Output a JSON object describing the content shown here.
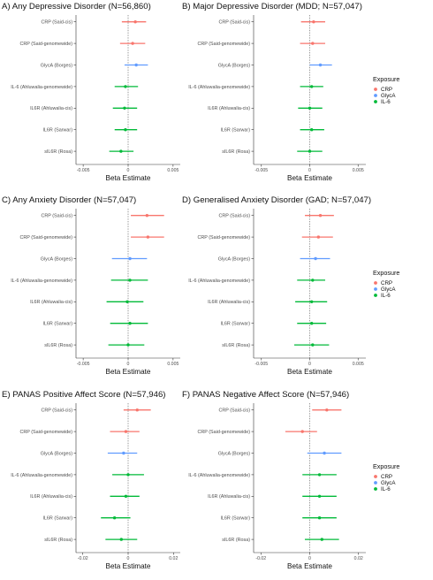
{
  "figure": {
    "legend": {
      "title": "Exposure",
      "items": [
        {
          "label": "CRP",
          "color": "#F8766D"
        },
        {
          "label": "GlycA",
          "color": "#619CFF"
        },
        {
          "label": "IL-6",
          "color": "#00BA38"
        }
      ]
    }
  },
  "chart_data": [
    {
      "type": "scatter",
      "title": "A) Any Depressive Disorder (N=56,860)",
      "xlabel": "Beta Estimate",
      "xlim": [
        -0.0058,
        0.0058
      ],
      "xticks": [
        -0.005,
        0,
        0.005
      ],
      "xtick_labels": [
        "-0.005",
        "0",
        "0.005"
      ],
      "reference_line": 0,
      "categories": [
        "CRP (Said-cis)",
        "CRP (Said-genomewide)",
        "GlycA (Borges)",
        "IL-6 (Ahluwalia-genomewide)",
        "IL6R (Ahluwalia-cis)",
        "IL6R (Sarwar)",
        "sIL6R (Rosa)"
      ],
      "exposure": [
        "CRP",
        "CRP",
        "GlycA",
        "IL-6",
        "IL-6",
        "IL-6",
        "IL-6"
      ],
      "estimate": [
        0.0008,
        0.0005,
        0.0009,
        -0.0003,
        -0.0004,
        -0.0003,
        -0.0008
      ],
      "lower": [
        -0.0007,
        -0.0009,
        -0.0004,
        -0.0015,
        -0.0017,
        -0.0015,
        -0.0021
      ],
      "upper": [
        0.002,
        0.0019,
        0.0022,
        0.0011,
        0.001,
        0.001,
        0.0006
      ]
    },
    {
      "type": "scatter",
      "title": "B) Major Depressive Disorder (MDD; N=57,047)",
      "xlabel": "Beta Estimate",
      "xlim": [
        -0.0058,
        0.0058
      ],
      "xticks": [
        -0.005,
        0,
        0.005
      ],
      "xtick_labels": [
        "-0.005",
        "0",
        "0.005"
      ],
      "reference_line": 0,
      "categories": [
        "CRP (Said-cis)",
        "CRP (Said-genomewide)",
        "GlycA (Borges)",
        "IL-6 (Ahluwalia-genomewide)",
        "IL6R (Ahluwalia-cis)",
        "IL6R (Sarwar)",
        "sIL6R (Rosa)"
      ],
      "exposure": [
        "CRP",
        "CRP",
        "GlycA",
        "IL-6",
        "IL-6",
        "IL-6",
        "IL-6"
      ],
      "estimate": [
        0.0004,
        0.0003,
        0.0011,
        0.0002,
        0.0,
        0.0002,
        0.0
      ],
      "lower": [
        -0.0009,
        -0.001,
        0.0,
        -0.001,
        -0.0012,
        -0.001,
        -0.0013
      ],
      "upper": [
        0.0016,
        0.0016,
        0.0023,
        0.0014,
        0.0013,
        0.0015,
        0.0013
      ]
    },
    {
      "type": "scatter",
      "title": "C) Any Anxiety Disorder (N=57,047)",
      "xlabel": "Beta Estimate",
      "xlim": [
        -0.0058,
        0.0058
      ],
      "xticks": [
        -0.005,
        0,
        0.005
      ],
      "xtick_labels": [
        "-0.005",
        "0",
        "0.005"
      ],
      "reference_line": 0,
      "categories": [
        "CRP (Said-cis)",
        "CRP (Said-genomewide)",
        "GlycA (Borges)",
        "IL-6 (Ahluwalia-genomewide)",
        "IL6R (Ahluwalia-cis)",
        "IL6R (Sarwar)",
        "sIL6R (Rosa)"
      ],
      "exposure": [
        "CRP",
        "CRP",
        "GlycA",
        "IL-6",
        "IL-6",
        "IL-6",
        "IL-6"
      ],
      "estimate": [
        0.0021,
        0.0022,
        0.0002,
        0.0002,
        -0.0001,
        0.0002,
        0.0
      ],
      "lower": [
        0.0003,
        0.0003,
        -0.0018,
        -0.0019,
        -0.0024,
        -0.002,
        -0.0022
      ],
      "upper": [
        0.004,
        0.004,
        0.0021,
        0.0022,
        0.0017,
        0.0022,
        0.0018
      ]
    },
    {
      "type": "scatter",
      "title": "D) Generalised Anxiety Disorder (GAD; N=57,047)",
      "xlabel": "Beta Estimate",
      "xlim": [
        -0.0058,
        0.0058
      ],
      "xticks": [
        -0.005,
        0,
        0.005
      ],
      "xtick_labels": [
        "-0.005",
        "0",
        "0.005"
      ],
      "reference_line": 0,
      "categories": [
        "CRP (Said-cis)",
        "CRP (Said-genomewide)",
        "GlycA (Borges)",
        "IL-6 (Ahluwalia-genomewide)",
        "IL6R (Ahluwalia-cis)",
        "IL6R (Sarwar)",
        "sIL6R (Rosa)"
      ],
      "exposure": [
        "CRP",
        "CRP",
        "GlycA",
        "IL-6",
        "IL-6",
        "IL-6",
        "IL-6"
      ],
      "estimate": [
        0.0011,
        0.0009,
        0.0006,
        0.0003,
        0.0002,
        0.0002,
        0.0003
      ],
      "lower": [
        -0.0005,
        -0.0008,
        -0.001,
        -0.0013,
        -0.0015,
        -0.0013,
        -0.0016
      ],
      "upper": [
        0.0025,
        0.0024,
        0.0021,
        0.0016,
        0.0018,
        0.0017,
        0.002
      ]
    },
    {
      "type": "scatter",
      "title": "E) PANAS Positive Affect Score (N=57,946)",
      "xlabel": "Beta Estimate",
      "xlim": [
        -0.023,
        0.023
      ],
      "xticks": [
        -0.02,
        0,
        0.02
      ],
      "xtick_labels": [
        "-0.02",
        "0",
        "0.02"
      ],
      "reference_line": 0,
      "categories": [
        "CRP (Said-cis)",
        "CRP (Said-genomewide)",
        "GlycA (Borges)",
        "IL-6 (Ahluwalia-genomewide)",
        "IL6R (Ahluwalia-cis)",
        "IL6R (Sarwar)",
        "sIL6R (Rosa)"
      ],
      "exposure": [
        "CRP",
        "CRP",
        "GlycA",
        "IL-6",
        "IL-6",
        "IL-6",
        "IL-6"
      ],
      "estimate": [
        0.004,
        -0.001,
        -0.002,
        0.0,
        -0.001,
        -0.006,
        -0.003
      ],
      "lower": [
        -0.002,
        -0.008,
        -0.009,
        -0.007,
        -0.008,
        -0.012,
        -0.01
      ],
      "upper": [
        0.01,
        0.005,
        0.004,
        0.007,
        0.005,
        0.001,
        0.004
      ]
    },
    {
      "type": "scatter",
      "title": "F) PANAS Negative Affect Score (N=57,946)",
      "xlabel": "Beta Estimate",
      "xlim": [
        -0.023,
        0.023
      ],
      "xticks": [
        -0.02,
        0,
        0.02
      ],
      "xtick_labels": [
        "-0.02",
        "0",
        "0.02"
      ],
      "reference_line": 0,
      "categories": [
        "CRP (Said-cis)",
        "CRP (Said-genomewide)",
        "GlycA (Borges)",
        "IL-6 (Ahluwalia-genomewide)",
        "IL6R (Ahluwalia-cis)",
        "IL6R (Sarwar)",
        "sIL6R (Rosa)"
      ],
      "exposure": [
        "CRP",
        "CRP",
        "GlycA",
        "IL-6",
        "IL-6",
        "IL-6",
        "IL-6"
      ],
      "estimate": [
        0.007,
        -0.003,
        0.006,
        0.004,
        0.004,
        0.004,
        0.005
      ],
      "lower": [
        0.001,
        -0.01,
        -0.001,
        -0.003,
        -0.003,
        -0.003,
        -0.002
      ],
      "upper": [
        0.013,
        0.003,
        0.013,
        0.011,
        0.011,
        0.011,
        0.012
      ]
    }
  ]
}
